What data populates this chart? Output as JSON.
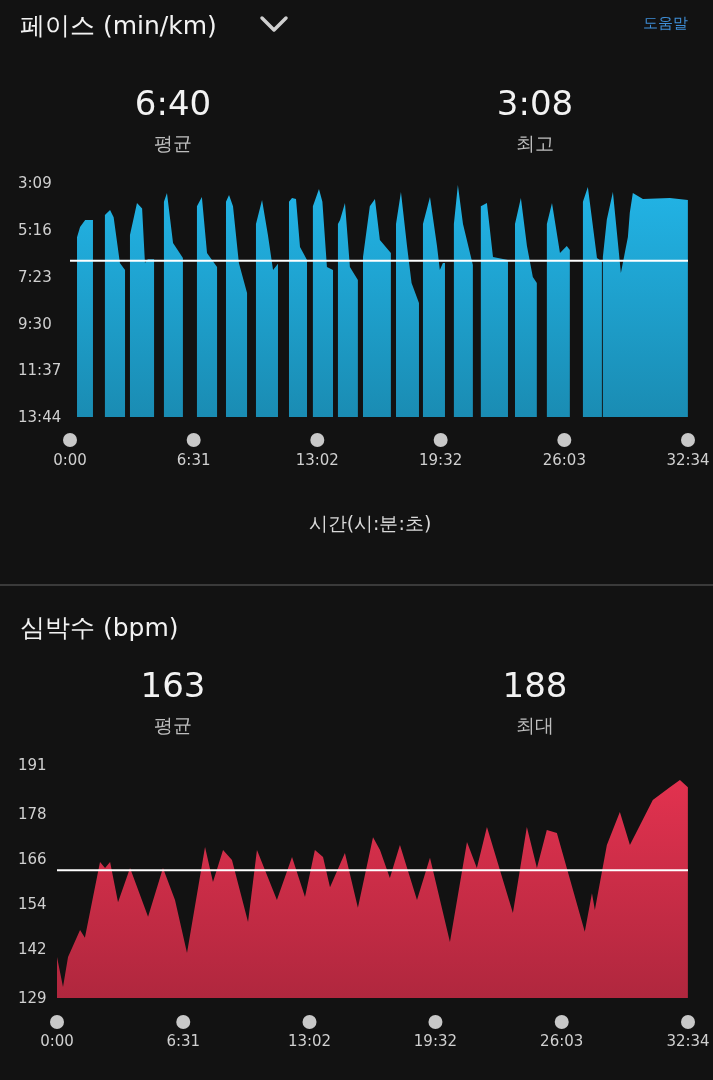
{
  "chart_data": [
    {
      "type": "area",
      "title": "페이스 (min/km)",
      "xlabel": "시간(시:분:초)",
      "annotations": [
        "6:40",
        "평균",
        "3:08",
        "최고",
        "도움말"
      ],
      "xlim": [
        0,
        32.567
      ],
      "xticks": [
        {
          "value": 0,
          "label": "0:00"
        },
        {
          "value": 6.517,
          "label": "6:31"
        },
        {
          "value": 13.033,
          "label": "13:02"
        },
        {
          "value": 19.533,
          "label": "19:32"
        },
        {
          "value": 26.05,
          "label": "26:03"
        },
        {
          "value": 32.567,
          "label": "32:34"
        }
      ],
      "ylim": [
        13.733,
        3.15
      ],
      "yticks": [
        {
          "value": 3.15,
          "label": "3:09"
        },
        {
          "value": 5.267,
          "label": "5:16"
        },
        {
          "value": 7.383,
          "label": "7:23"
        },
        {
          "value": 9.5,
          "label": "9:30"
        },
        {
          "value": 11.617,
          "label": "11:37"
        },
        {
          "value": 13.733,
          "label": "13:44"
        }
      ],
      "ref_lines": [
        {
          "axis": "y",
          "value": 6.667,
          "color": "#ffffff"
        }
      ],
      "series": [
        {
          "color": "#22b4e6",
          "x": [
            0.37,
            0.37,
            0.53,
            0.8,
            1.21,
            1.21,
            1.84,
            1.84,
            2.11,
            2.3,
            2.63,
            2.9,
            2.9,
            3.16,
            3.16,
            3.53,
            3.8,
            3.95,
            4.1,
            4.43,
            4.43,
            4.95,
            4.95,
            5.11,
            5.43,
            5.95,
            5.95,
            6.69,
            6.69,
            6.95,
            7.22,
            7.75,
            7.75,
            8.22,
            8.22,
            8.38,
            8.59,
            8.9,
            9.33,
            9.33,
            9.8,
            9.8,
            10.12,
            10.43,
            10.7,
            10.96,
            10.96,
            11.54,
            11.54,
            11.7,
            11.91,
            12.12,
            12.49,
            12.49,
            12.8,
            12.8,
            13.12,
            13.3,
            13.54,
            13.86,
            13.86,
            14.12,
            14.12,
            14.23,
            14.49,
            14.75,
            15.17,
            15.17,
            15.44,
            15.44,
            15.8,
            16.07,
            16.33,
            16.91,
            16.91,
            17.18,
            17.18,
            17.44,
            17.76,
            18.0,
            18.39,
            18.39,
            18.6,
            18.6,
            18.97,
            19.34,
            19.49,
            19.65,
            19.76,
            19.76,
            20.23,
            20.23,
            20.44,
            20.71,
            21.23,
            21.23,
            21.65,
            21.65,
            21.97,
            22.29,
            23.08,
            23.08,
            23.45,
            23.45,
            23.76,
            24.08,
            24.39,
            24.6,
            24.6,
            25.13,
            25.13,
            25.4,
            25.82,
            26.18,
            26.34,
            26.34,
            27.03,
            27.03,
            27.29,
            27.77,
            28.03,
            28.03,
            28.08,
            28.08,
            28.29,
            28.61,
            29.03,
            29.4,
            29.5,
            29.66,
            30.19,
            31.61,
            32.56,
            32.56
          ],
          "values": [
            13.733,
            5.6,
            5.14,
            4.82,
            4.82,
            13.733,
            13.733,
            4.6,
            4.37,
            4.7,
            6.77,
            7.09,
            13.733,
            13.733,
            5.5,
            4.05,
            4.3,
            6.77,
            6.6,
            6.6,
            13.733,
            13.733,
            4.0,
            3.6,
            5.86,
            6.54,
            13.733,
            13.733,
            4.2,
            3.78,
            6.32,
            6.95,
            13.733,
            13.733,
            4.0,
            3.69,
            4.2,
            6.77,
            8.13,
            13.733,
            13.733,
            5.0,
            3.92,
            5.5,
            7.09,
            6.8,
            13.733,
            13.733,
            4.0,
            3.83,
            3.87,
            6.04,
            6.63,
            13.733,
            13.733,
            4.2,
            3.42,
            4.0,
            6.95,
            7.09,
            13.733,
            13.733,
            5.0,
            4.82,
            4.05,
            6.95,
            7.54,
            13.733,
            13.733,
            6.5,
            4.2,
            3.87,
            5.73,
            6.32,
            13.733,
            13.733,
            5.0,
            3.56,
            6.0,
            7.67,
            8.58,
            13.733,
            13.733,
            5.0,
            3.78,
            6.0,
            7.09,
            6.77,
            6.77,
            13.733,
            13.733,
            5.0,
            3.24,
            5.0,
            6.86,
            13.733,
            13.733,
            4.2,
            4.05,
            6.5,
            6.63,
            13.733,
            13.733,
            5.0,
            3.83,
            6.0,
            7.4,
            7.67,
            13.733,
            13.733,
            5.0,
            4.05,
            6.32,
            6.0,
            6.18,
            13.733,
            13.733,
            4.0,
            3.33,
            6.54,
            6.7,
            13.733,
            13.733,
            6.5,
            4.8,
            3.56,
            7.22,
            5.59,
            4.5,
            3.6,
            3.87,
            3.83,
            3.92,
            13.733
          ]
        }
      ]
    },
    {
      "type": "area",
      "title": "심박수 (bpm)",
      "annotations": [
        "163",
        "평균",
        "188",
        "최대"
      ],
      "xlim": [
        0,
        32.567
      ],
      "xticks": [
        {
          "value": 0,
          "label": "0:00"
        },
        {
          "value": 6.517,
          "label": "6:31"
        },
        {
          "value": 13.033,
          "label": "13:02"
        },
        {
          "value": 19.533,
          "label": "19:32"
        },
        {
          "value": 26.05,
          "label": "26:03"
        },
        {
          "value": 32.567,
          "label": "32:34"
        }
      ],
      "ylim": [
        129,
        191
      ],
      "yticks": [
        129,
        142,
        154,
        166,
        178,
        191
      ],
      "ref_lines": [
        {
          "axis": "y",
          "value": 163,
          "color": "#ffffff"
        }
      ],
      "series": [
        {
          "color": "#e2324f",
          "x": [
            0,
            0.31,
            0.57,
            1.19,
            1.44,
            2.22,
            2.48,
            2.74,
            3.15,
            3.77,
            4.7,
            5.47,
            6.09,
            6.71,
            7.64,
            8.05,
            8.57,
            9.03,
            9.86,
            10.32,
            11.35,
            12.13,
            12.8,
            13.31,
            13.73,
            14.09,
            14.86,
            15.53,
            16.31,
            16.67,
            17.18,
            17.7,
            18.58,
            19.25,
            20.28,
            21.16,
            21.67,
            22.19,
            23.53,
            24.25,
            24.77,
            25.28,
            25.8,
            27.24,
            27.61,
            27.76,
            28.38,
            29.05,
            29.57,
            30.75,
            31.63,
            32.15,
            32.56
          ],
          "values": [
            139.9,
            131.9,
            139.9,
            147.1,
            145,
            165.2,
            163.6,
            165.2,
            154.5,
            163.6,
            150.6,
            163.6,
            155.1,
            141,
            169.2,
            159.9,
            168.4,
            165.7,
            149.2,
            168.4,
            155.1,
            166.5,
            155.9,
            168.4,
            166.5,
            158.5,
            167.6,
            153,
            171.8,
            168.4,
            160.9,
            169.7,
            155.1,
            166.3,
            143.9,
            170.5,
            163.6,
            174.5,
            151.6,
            174.5,
            163.6,
            173.7,
            172.9,
            146.6,
            156.9,
            152.4,
            169.7,
            178.5,
            169.7,
            181.7,
            185.1,
            187,
            185.1
          ]
        }
      ]
    }
  ]
}
